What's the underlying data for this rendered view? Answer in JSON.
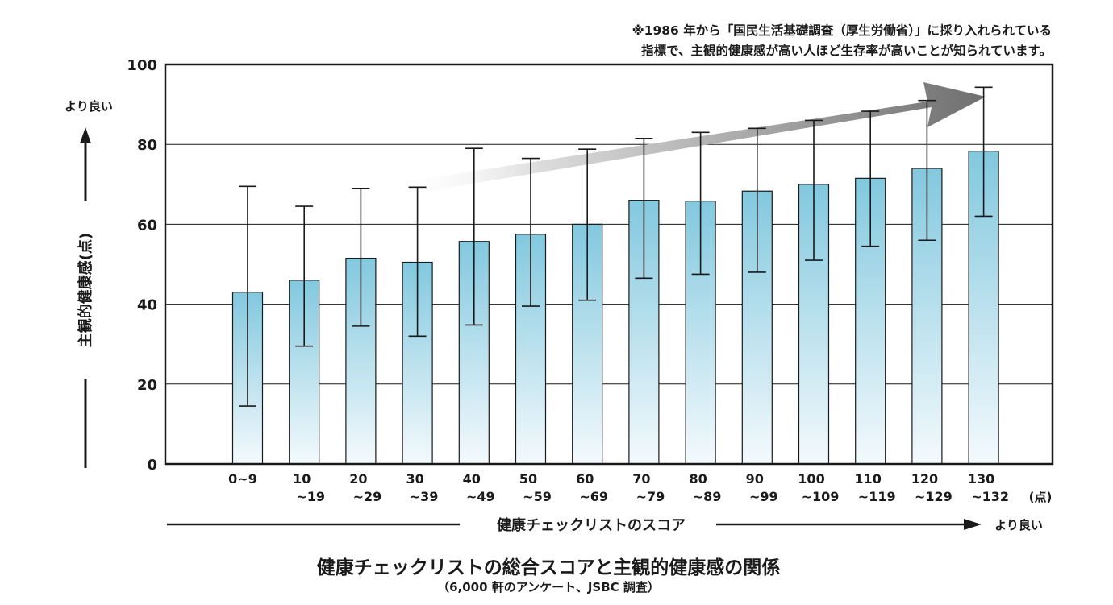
{
  "notes": {
    "line1": "※1986 年から「国民生活基礎調査（厚生労働省）」に採り入れられている",
    "line2": "指標で、主観的健康感が高い人ほど生存率が高いことが知られています。"
  },
  "footer": {
    "title": "健康チェックリストの総合スコアと主観的健康感の関係",
    "subtitle": "（6,000 軒のアンケート、JSBC 調査）"
  },
  "chart_data": {
    "type": "bar",
    "ylabel": "主観的健康感(点)",
    "ylabel_better": "より良い",
    "xlabel": "健康チェックリストのスコア",
    "xlabel_better": "より良い",
    "x_unit": "(点)",
    "ylim": [
      0,
      100
    ],
    "yticks": [
      0,
      20,
      40,
      60,
      80,
      100
    ],
    "grid": true,
    "categories": [
      [
        "0~9"
      ],
      [
        "10",
        "~19"
      ],
      [
        "20",
        "~29"
      ],
      [
        "30",
        "~39"
      ],
      [
        "40",
        "~49"
      ],
      [
        "50",
        "~59"
      ],
      [
        "60",
        "~69"
      ],
      [
        "70",
        "~79"
      ],
      [
        "80",
        "~89"
      ],
      [
        "90",
        "~99"
      ],
      [
        "100",
        "~109"
      ],
      [
        "110",
        "~119"
      ],
      [
        "120",
        "~129"
      ],
      [
        "130",
        "~132"
      ]
    ],
    "values": [
      43,
      46,
      51.5,
      50.5,
      55.7,
      57.5,
      60,
      66,
      65.8,
      68.3,
      70,
      71.5,
      74,
      78.3
    ],
    "error_low": [
      14.5,
      29.5,
      34.5,
      32,
      34.8,
      39.5,
      41,
      46.5,
      47.5,
      48,
      51,
      54.5,
      56,
      62
    ],
    "error_high": [
      69.5,
      64.5,
      69,
      69.3,
      79,
      76.5,
      78.8,
      81.5,
      83,
      84,
      86,
      88.3,
      91,
      94.3
    ],
    "bar_color_top": "#82c8de",
    "bar_color_bottom": "#f4fafd",
    "trend_arrow_from": "#ffffff",
    "trend_arrow_to": "#6f6f6f"
  }
}
